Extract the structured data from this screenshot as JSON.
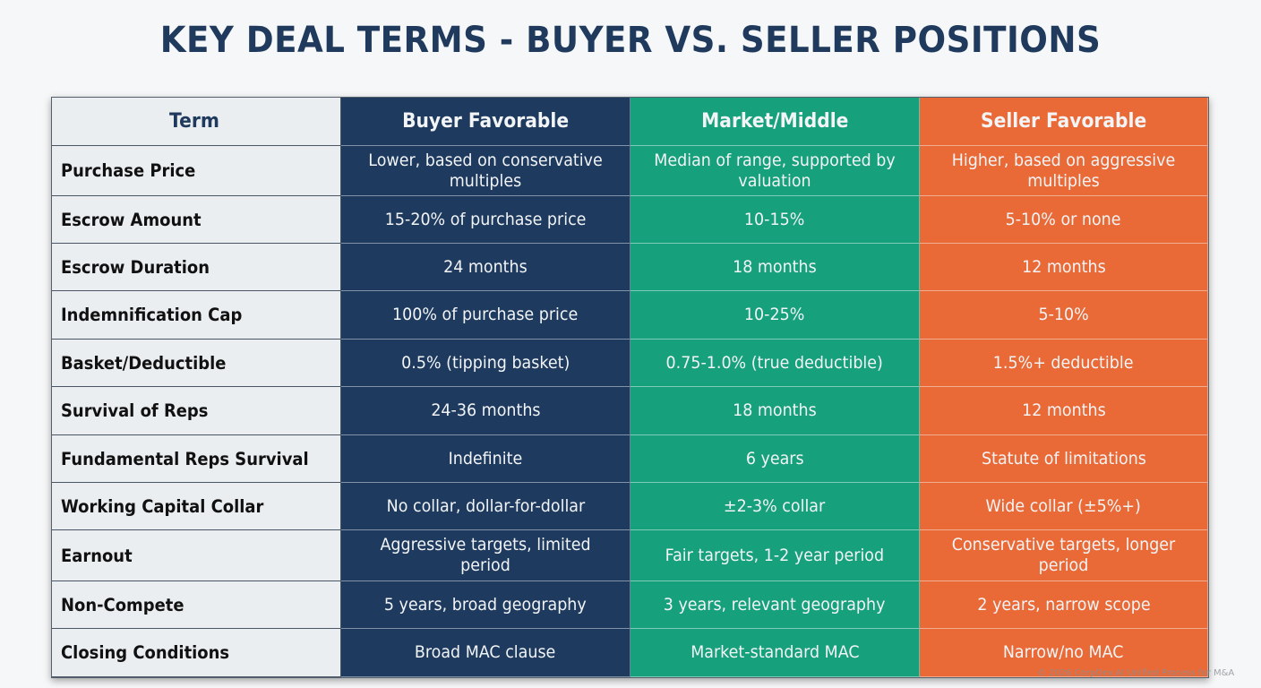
{
  "title": "KEY DEAL TERMS - BUYER VS. SELLER POSITIONS",
  "colors": {
    "title": "#1f3a5c",
    "term_bg": "#ebeef1",
    "buyer": "#1e3a5f",
    "market": "#16a07c",
    "seller": "#ea6a37"
  },
  "table": {
    "headers": [
      "Term",
      "Buyer Favorable",
      "Market/Middle",
      "Seller Favorable"
    ],
    "rows": [
      [
        "Purchase Price",
        "Lower, based on conservative multiples",
        "Median of range, supported by valuation",
        "Higher, based on aggressive multiples"
      ],
      [
        "Escrow Amount",
        "15-20% of purchase price",
        "10-15%",
        "5-10% or none"
      ],
      [
        "Escrow Duration",
        "24 months",
        "18 months",
        "12 months"
      ],
      [
        "Indemnification Cap",
        "100% of purchase price",
        "10-25%",
        "5-10%"
      ],
      [
        "Basket/Deductible",
        "0.5% (tipping basket)",
        "0.75-1.0% (true deductible)",
        "1.5%+ deductible"
      ],
      [
        "Survival of Reps",
        "24-36 months",
        "18 months",
        "12 months"
      ],
      [
        "Fundamental Reps Survival",
        "Indefinite",
        "6 years",
        "Statute of limitations"
      ],
      [
        "Working Capital Collar",
        "No collar, dollar-for-dollar",
        "±2-3% collar",
        "Wide collar (±5%+)"
      ],
      [
        "Earnout",
        "Aggressive targets, limited period",
        "Fair targets, 1-2 year period",
        "Conservative targets, longer period"
      ],
      [
        "Non-Compete",
        "5 years, broad geography",
        "3 years, relevant geography",
        "2 years, narrow scope"
      ],
      [
        "Closing Conditions",
        "Broad MAC clause",
        "Market-standard MAC",
        "Narrow/no MAC"
      ]
    ]
  },
  "watermark": "© 2026 CorpDev.AI Unified Process for M&A"
}
